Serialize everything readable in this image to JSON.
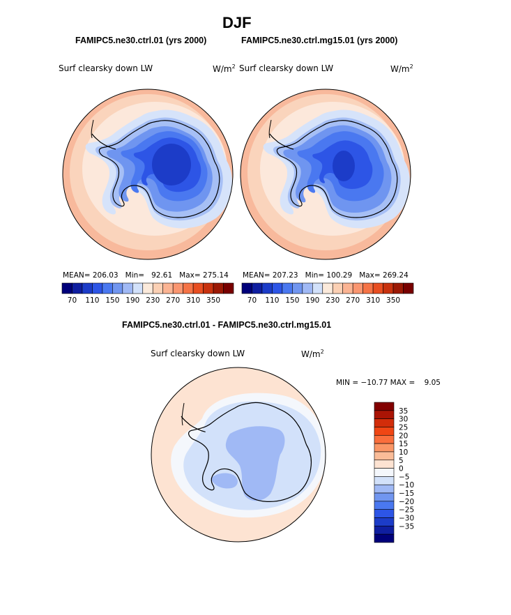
{
  "page": {
    "season_title": "DJF"
  },
  "panels": [
    {
      "id": "ctrl",
      "case_title": "FAMIPC5.ne30.ctrl.01 (yrs 2000)",
      "variable": "Surf clearsky down LW",
      "units": "W/m",
      "units_exp": "2",
      "stats": {
        "mean_label": "MEAN=",
        "mean": "206.03",
        "min_label": "Min=",
        "min": "92.61",
        "max_label": "Max=",
        "max": "275.14"
      }
    },
    {
      "id": "mg15",
      "case_title": "FAMIPC5.ne30.ctrl.mg15.01 (yrs 2000)",
      "variable": "Surf clearsky down LW",
      "units": "W/m",
      "units_exp": "2",
      "stats": {
        "mean_label": "MEAN=",
        "mean": "207.23",
        "min_label": "Min=",
        "min": "100.29",
        "max_label": "Max=",
        "max": "269.24"
      }
    }
  ],
  "difference": {
    "case_title": "FAMIPC5.ne30.ctrl.01 - FAMIPC5.ne30.ctrl.mg15.01",
    "variable": "Surf clearsky down LW",
    "units": "W/m",
    "units_exp": "2",
    "min_max_text": "MIN = −10.77 MAX =    9.05"
  },
  "colorbar_abs": {
    "colors": [
      "#00007a",
      "#0f1ea0",
      "#1c3cc8",
      "#2d55e6",
      "#4a78f0",
      "#7196f0",
      "#a0b9f5",
      "#d2e1fa",
      "#fbeadb",
      "#fbd0b4",
      "#fbb493",
      "#fa9670",
      "#f57346",
      "#e84e21",
      "#c8320f",
      "#9c1905",
      "#780000"
    ],
    "tick_labels": [
      "70",
      "110",
      "150",
      "190",
      "230",
      "270",
      "310",
      "350"
    ]
  },
  "colorbar_diff": {
    "colors": [
      "#820000",
      "#aa1405",
      "#d22d0a",
      "#f04614",
      "#fa6e3c",
      "#fa9666",
      "#fabc98",
      "#fde3d2",
      "#f4f7fc",
      "#d2e1fa",
      "#a0b9f5",
      "#7196f0",
      "#4a78f0",
      "#2d55e6",
      "#1c3cc8",
      "#0f1ea0",
      "#00007a"
    ],
    "tick_labels": [
      "35",
      "30",
      "25",
      "20",
      "15",
      "10",
      "5",
      "0",
      "−5",
      "−10",
      "−15",
      "−20",
      "−25",
      "−30",
      "−35"
    ]
  },
  "map_colors": {
    "abs_levels": [
      "#fad4bc",
      "#f8b99c",
      "#fce8db",
      "#d6e3fa",
      "#a6bff5",
      "#6f95f0",
      "#4a78f0",
      "#2d55e6",
      "#1c3cc8"
    ],
    "diff_levels": [
      "#fde3d2",
      "#f4f7fc",
      "#d2e1fa",
      "#a0b9f5"
    ],
    "coast": "#000000"
  }
}
